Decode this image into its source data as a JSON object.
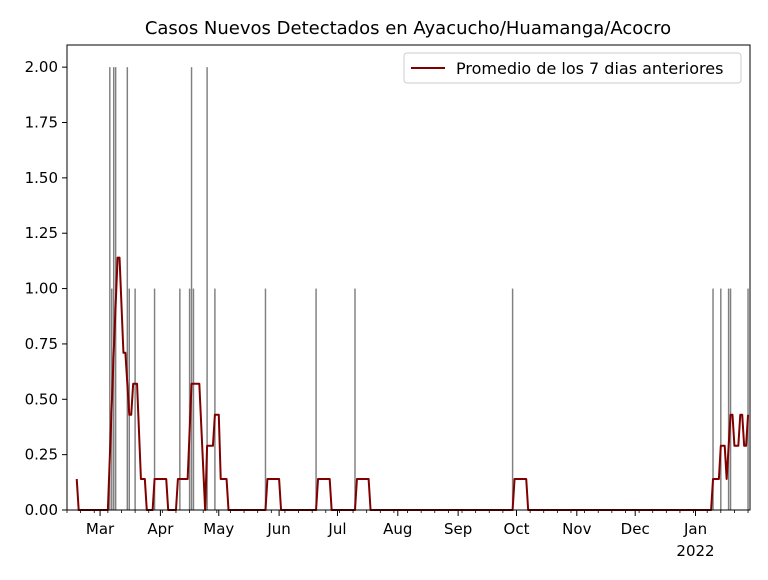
{
  "chart_data": {
    "type": "bar",
    "title": "Casos Nuevos Detectados en Ayacucho/Huamanga/Acocro",
    "xlabel": "",
    "ylabel": "",
    "x_axis": {
      "type": "date",
      "range": [
        "2021-02-12",
        "2022-01-29"
      ],
      "ticks": [
        {
          "date": "2021-03-01",
          "label": "Mar"
        },
        {
          "date": "2021-04-01",
          "label": "Apr"
        },
        {
          "date": "2021-05-01",
          "label": "May"
        },
        {
          "date": "2021-06-01",
          "label": "Jun"
        },
        {
          "date": "2021-07-01",
          "label": "Jul"
        },
        {
          "date": "2021-08-01",
          "label": "Aug"
        },
        {
          "date": "2021-09-01",
          "label": "Sep"
        },
        {
          "date": "2021-10-01",
          "label": "Oct"
        },
        {
          "date": "2021-11-01",
          "label": "Nov"
        },
        {
          "date": "2021-12-01",
          "label": "Dec"
        },
        {
          "date": "2022-01-01",
          "label": "Jan",
          "sublabel": "2022"
        }
      ]
    },
    "ylim": [
      0,
      2.1
    ],
    "yticks": [
      "0.00",
      "0.25",
      "0.50",
      "0.75",
      "1.00",
      "1.25",
      "1.50",
      "1.75",
      "2.00"
    ],
    "grid": false,
    "legend_position": "top-right",
    "colors": {
      "bars": "#808080",
      "line": "#800000"
    },
    "series": [
      {
        "kind": "bar",
        "points": [
          {
            "date": "2021-03-06",
            "value": 2
          },
          {
            "date": "2021-03-07",
            "value": 1
          },
          {
            "date": "2021-03-08",
            "value": 2
          },
          {
            "date": "2021-03-09",
            "value": 2
          },
          {
            "date": "2021-03-15",
            "value": 2
          },
          {
            "date": "2021-03-16",
            "value": 1
          },
          {
            "date": "2021-03-19",
            "value": 1
          },
          {
            "date": "2021-03-29",
            "value": 1
          },
          {
            "date": "2021-04-11",
            "value": 1
          },
          {
            "date": "2021-04-16",
            "value": 1
          },
          {
            "date": "2021-04-17",
            "value": 2
          },
          {
            "date": "2021-04-18",
            "value": 1
          },
          {
            "date": "2021-04-25",
            "value": 2
          },
          {
            "date": "2021-04-29",
            "value": 1
          },
          {
            "date": "2021-05-25",
            "value": 1
          },
          {
            "date": "2021-06-20",
            "value": 1
          },
          {
            "date": "2021-07-10",
            "value": 1
          },
          {
            "date": "2021-09-29",
            "value": 1
          },
          {
            "date": "2022-01-10",
            "value": 1
          },
          {
            "date": "2022-01-14",
            "value": 1
          },
          {
            "date": "2022-01-18",
            "value": 1
          },
          {
            "date": "2022-01-19",
            "value": 1
          },
          {
            "date": "2022-01-28",
            "value": 1
          }
        ]
      },
      {
        "kind": "line",
        "name": "Promedio de los 7 dias anteriores",
        "points": [
          {
            "date": "2021-02-17",
            "value": 0.14
          },
          {
            "date": "2021-02-18",
            "value": 0.0
          },
          {
            "date": "2021-03-05",
            "value": 0.0
          },
          {
            "date": "2021-03-08",
            "value": 0.71
          },
          {
            "date": "2021-03-10",
            "value": 1.14
          },
          {
            "date": "2021-03-11",
            "value": 1.14
          },
          {
            "date": "2021-03-13",
            "value": 0.71
          },
          {
            "date": "2021-03-14",
            "value": 0.71
          },
          {
            "date": "2021-03-16",
            "value": 0.43
          },
          {
            "date": "2021-03-17",
            "value": 0.43
          },
          {
            "date": "2021-03-18",
            "value": 0.57
          },
          {
            "date": "2021-03-20",
            "value": 0.57
          },
          {
            "date": "2021-03-22",
            "value": 0.14
          },
          {
            "date": "2021-03-24",
            "value": 0.14
          },
          {
            "date": "2021-03-25",
            "value": 0.0
          },
          {
            "date": "2021-03-28",
            "value": 0.0
          },
          {
            "date": "2021-03-29",
            "value": 0.14
          },
          {
            "date": "2021-04-04",
            "value": 0.14
          },
          {
            "date": "2021-04-05",
            "value": 0.0
          },
          {
            "date": "2021-04-09",
            "value": 0.0
          },
          {
            "date": "2021-04-10",
            "value": 0.14
          },
          {
            "date": "2021-04-15",
            "value": 0.14
          },
          {
            "date": "2021-04-17",
            "value": 0.57
          },
          {
            "date": "2021-04-21",
            "value": 0.57
          },
          {
            "date": "2021-04-24",
            "value": 0.0
          },
          {
            "date": "2021-04-25",
            "value": 0.29
          },
          {
            "date": "2021-04-28",
            "value": 0.29
          },
          {
            "date": "2021-04-29",
            "value": 0.43
          },
          {
            "date": "2021-05-01",
            "value": 0.43
          },
          {
            "date": "2021-05-02",
            "value": 0.14
          },
          {
            "date": "2021-05-05",
            "value": 0.14
          },
          {
            "date": "2021-05-06",
            "value": 0.0
          },
          {
            "date": "2021-05-25",
            "value": 0.0
          },
          {
            "date": "2021-05-26",
            "value": 0.14
          },
          {
            "date": "2021-06-01",
            "value": 0.14
          },
          {
            "date": "2021-06-02",
            "value": 0.0
          },
          {
            "date": "2021-06-20",
            "value": 0.0
          },
          {
            "date": "2021-06-21",
            "value": 0.14
          },
          {
            "date": "2021-06-27",
            "value": 0.14
          },
          {
            "date": "2021-06-28",
            "value": 0.0
          },
          {
            "date": "2021-07-10",
            "value": 0.0
          },
          {
            "date": "2021-07-11",
            "value": 0.14
          },
          {
            "date": "2021-07-17",
            "value": 0.14
          },
          {
            "date": "2021-07-18",
            "value": 0.0
          },
          {
            "date": "2021-09-29",
            "value": 0.0
          },
          {
            "date": "2021-09-30",
            "value": 0.14
          },
          {
            "date": "2021-10-06",
            "value": 0.14
          },
          {
            "date": "2021-10-07",
            "value": 0.0
          },
          {
            "date": "2022-01-09",
            "value": 0.0
          },
          {
            "date": "2022-01-10",
            "value": 0.14
          },
          {
            "date": "2022-01-13",
            "value": 0.14
          },
          {
            "date": "2022-01-14",
            "value": 0.29
          },
          {
            "date": "2022-01-16",
            "value": 0.29
          },
          {
            "date": "2022-01-17",
            "value": 0.14
          },
          {
            "date": "2022-01-19",
            "value": 0.43
          },
          {
            "date": "2022-01-20",
            "value": 0.43
          },
          {
            "date": "2022-01-21",
            "value": 0.29
          },
          {
            "date": "2022-01-23",
            "value": 0.29
          },
          {
            "date": "2022-01-24",
            "value": 0.43
          },
          {
            "date": "2022-01-25",
            "value": 0.43
          },
          {
            "date": "2022-01-26",
            "value": 0.29
          },
          {
            "date": "2022-01-27",
            "value": 0.29
          },
          {
            "date": "2022-01-28",
            "value": 0.43
          }
        ]
      }
    ]
  }
}
